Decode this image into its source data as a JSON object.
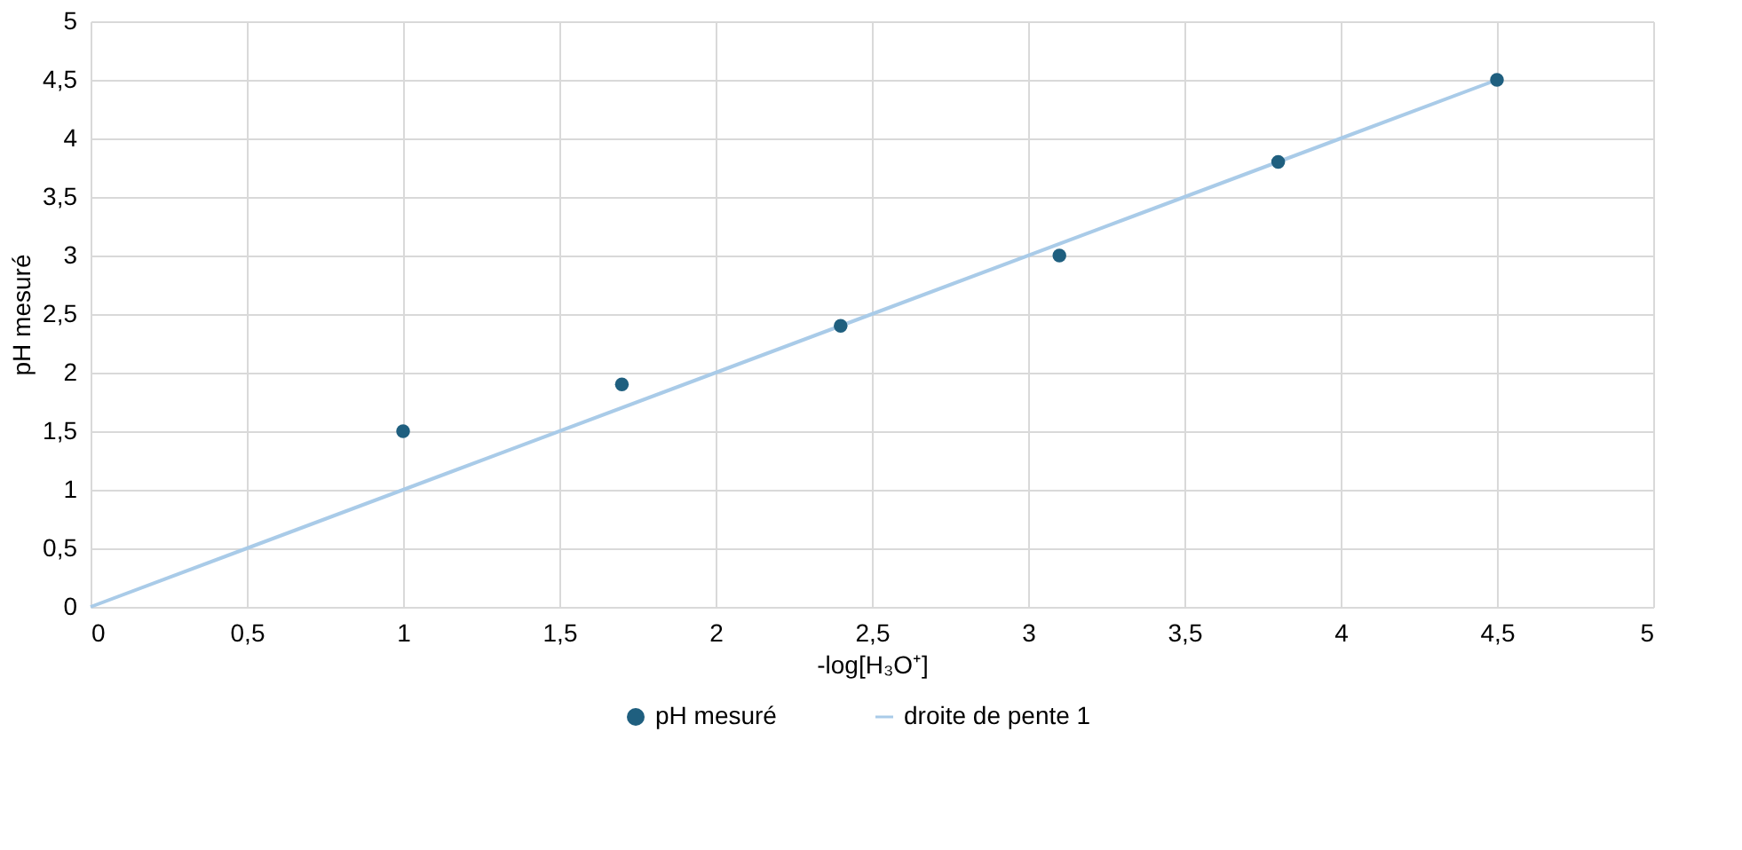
{
  "chart_data": {
    "type": "scatter",
    "xlabel": "-log[H₃O⁺]",
    "ylabel": "pH mesuré",
    "xlim": [
      0,
      5
    ],
    "ylim": [
      0,
      5
    ],
    "xticks": [
      0,
      {
        "value": 0.5,
        "label": "0,5"
      },
      1,
      {
        "value": 1.5,
        "label": "1,5"
      },
      2,
      {
        "value": 2.5,
        "label": "2,5"
      },
      3,
      {
        "value": 3.5,
        "label": "3,5"
      },
      4,
      {
        "value": 4.5,
        "label": "4,5"
      },
      5
    ],
    "yticks": [
      0,
      {
        "value": 0.5,
        "label": "0,5"
      },
      1,
      {
        "value": 1.5,
        "label": "1,5"
      },
      2,
      {
        "value": 2.5,
        "label": "2,5"
      },
      3,
      {
        "value": 3.5,
        "label": "3,5"
      },
      4,
      {
        "value": 4.5,
        "label": "4,5"
      },
      5
    ],
    "grid": true,
    "legend": "bottom",
    "series": [
      {
        "name": "pH mesuré",
        "marker": "circle",
        "color": "#1f5f7f",
        "x": [
          1,
          1.7,
          2.4,
          3.1,
          3.8,
          4.5
        ],
        "values": [
          1.5,
          1.9,
          2.4,
          3.0,
          3.8,
          4.5
        ]
      },
      {
        "name": "droite de pente 1",
        "type": "line",
        "line_style": "solid",
        "color": "#a9cbe8",
        "x": [
          0,
          4.5
        ],
        "values": [
          0,
          4.5
        ]
      }
    ]
  }
}
